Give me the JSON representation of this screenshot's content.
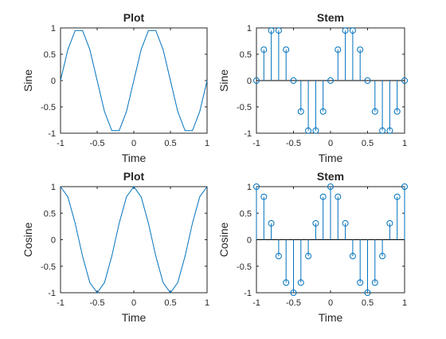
{
  "figure": {
    "background": "#ffffff"
  },
  "line_color": "#0072BD",
  "axis_color": "#262626",
  "chart_data": [
    {
      "type": "line",
      "title": "Plot",
      "xlabel": "Time",
      "ylabel": "Sine",
      "xlim": [
        -1,
        1
      ],
      "ylim": [
        -1,
        1
      ],
      "xticks": [
        "-1",
        "-0.5",
        "0",
        "0.5",
        "1"
      ],
      "yticks": [
        "-1",
        "-0.5",
        "0",
        "0.5",
        "1"
      ],
      "grid": false,
      "x": [
        -1,
        -0.9,
        -0.8,
        -0.7,
        -0.6,
        -0.5,
        -0.4,
        -0.3,
        -0.2,
        -0.1,
        0,
        0.1,
        0.2,
        0.3,
        0.4,
        0.5,
        0.6,
        0.7,
        0.8,
        0.9,
        1
      ],
      "series": [
        {
          "values": [
            0,
            0.588,
            0.951,
            0.951,
            0.588,
            0,
            -0.588,
            -0.951,
            -0.951,
            -0.588,
            0,
            0.588,
            0.951,
            0.951,
            0.588,
            0,
            -0.588,
            -0.951,
            -0.951,
            -0.588,
            0
          ]
        }
      ]
    },
    {
      "type": "stem",
      "title": "Stem",
      "xlabel": "Time",
      "ylabel": "Sine",
      "xlim": [
        -1,
        1
      ],
      "ylim": [
        -1,
        1
      ],
      "xticks": [
        "-1",
        "-0.5",
        "0",
        "0.5",
        "1"
      ],
      "yticks": [
        "-1",
        "-0.5",
        "0",
        "0.5",
        "1"
      ],
      "grid": false,
      "x": [
        -1,
        -0.9,
        -0.8,
        -0.7,
        -0.6,
        -0.5,
        -0.4,
        -0.3,
        -0.2,
        -0.1,
        0,
        0.1,
        0.2,
        0.3,
        0.4,
        0.5,
        0.6,
        0.7,
        0.8,
        0.9,
        1
      ],
      "series": [
        {
          "values": [
            0,
            0.588,
            0.951,
            0.951,
            0.588,
            0,
            -0.588,
            -0.951,
            -0.951,
            -0.588,
            0,
            0.588,
            0.951,
            0.951,
            0.588,
            0,
            -0.588,
            -0.951,
            -0.951,
            -0.588,
            0
          ]
        }
      ]
    },
    {
      "type": "line",
      "title": "Plot",
      "xlabel": "Time",
      "ylabel": "Cosine",
      "xlim": [
        -1,
        1
      ],
      "ylim": [
        -1,
        1
      ],
      "xticks": [
        "-1",
        "-0.5",
        "0",
        "0.5",
        "1"
      ],
      "yticks": [
        "-1",
        "-0.5",
        "0",
        "0.5",
        "1"
      ],
      "grid": false,
      "x": [
        -1,
        -0.9,
        -0.8,
        -0.7,
        -0.6,
        -0.5,
        -0.4,
        -0.3,
        -0.2,
        -0.1,
        0,
        0.1,
        0.2,
        0.3,
        0.4,
        0.5,
        0.6,
        0.7,
        0.8,
        0.9,
        1
      ],
      "series": [
        {
          "values": [
            1,
            0.809,
            0.309,
            -0.309,
            -0.809,
            -1,
            -0.809,
            -0.309,
            0.309,
            0.809,
            1,
            0.809,
            0.309,
            -0.309,
            -0.809,
            -1,
            -0.809,
            -0.309,
            0.309,
            0.809,
            1
          ]
        }
      ]
    },
    {
      "type": "stem",
      "title": "Stem",
      "xlabel": "Time",
      "ylabel": "Cosine",
      "xlim": [
        -1,
        1
      ],
      "ylim": [
        -1,
        1
      ],
      "xticks": [
        "-1",
        "-0.5",
        "0",
        "0.5",
        "1"
      ],
      "yticks": [
        "-1",
        "-0.5",
        "0",
        "0.5",
        "1"
      ],
      "grid": false,
      "x": [
        -1,
        -0.9,
        -0.8,
        -0.7,
        -0.6,
        -0.5,
        -0.4,
        -0.3,
        -0.2,
        -0.1,
        0,
        0.1,
        0.2,
        0.3,
        0.4,
        0.5,
        0.6,
        0.7,
        0.8,
        0.9,
        1
      ],
      "series": [
        {
          "values": [
            1,
            0.809,
            0.309,
            -0.309,
            -0.809,
            -1,
            -0.809,
            -0.309,
            0.309,
            0.809,
            1,
            0.809,
            0.309,
            -0.309,
            -0.809,
            -1,
            -0.809,
            -0.309,
            0.309,
            0.809,
            1
          ]
        }
      ]
    }
  ]
}
